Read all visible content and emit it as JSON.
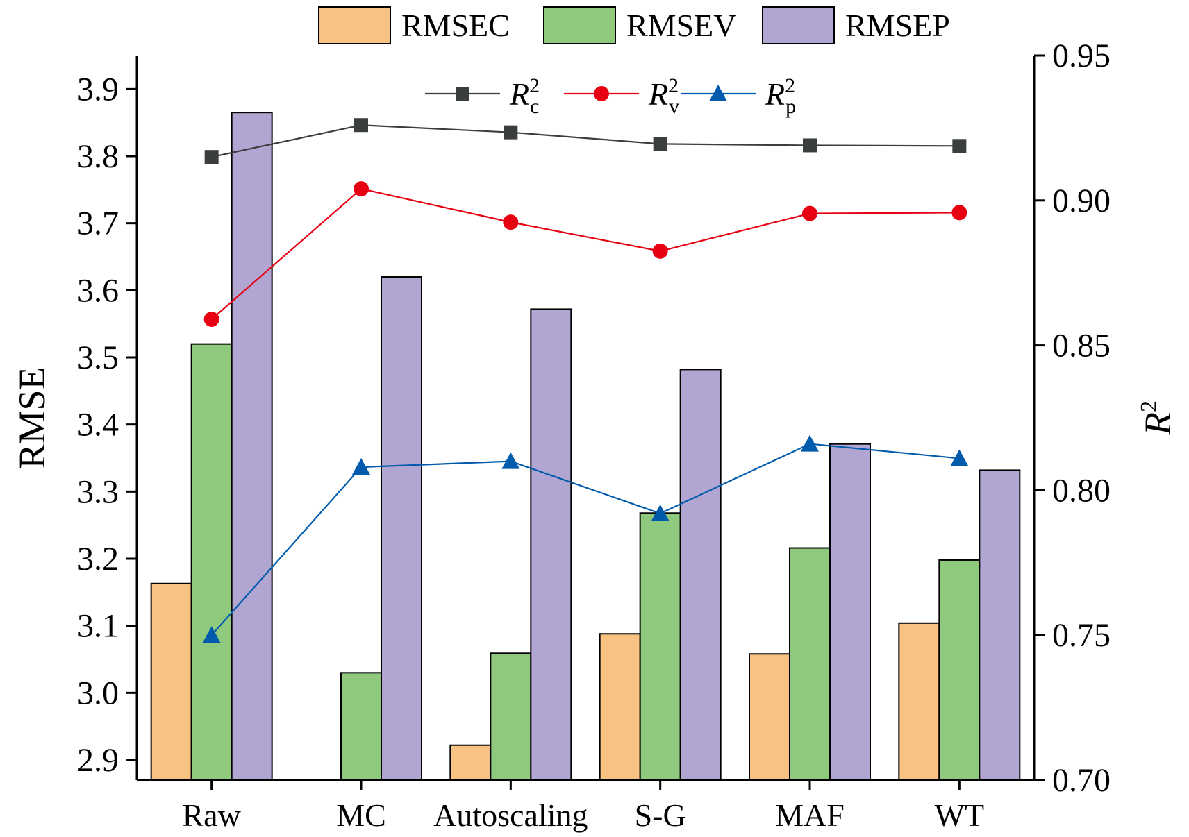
{
  "chart_data": {
    "type": "bar",
    "categories": [
      "Raw",
      "MC",
      "Autoscaling",
      "S-G",
      "MAF",
      "WT"
    ],
    "bar_series": [
      {
        "name": "RMSEC",
        "color": "#F8C283",
        "values": [
          3.163,
          2.87,
          2.922,
          3.088,
          3.058,
          3.104
        ]
      },
      {
        "name": "RMSEV",
        "color": "#8EC97E",
        "values": [
          3.52,
          3.03,
          3.059,
          3.268,
          3.216,
          3.198
        ]
      },
      {
        "name": "RMSEP",
        "color": "#B1A6D1",
        "values": [
          3.865,
          3.62,
          3.572,
          3.482,
          3.371,
          3.332
        ]
      }
    ],
    "line_series": [
      {
        "name_base": "R",
        "name_sup": "2",
        "name_sub": "c",
        "color": "#3A3F3E",
        "marker": "square",
        "values": [
          0.915,
          0.926,
          0.9235,
          0.9195,
          0.919,
          0.9188
        ]
      },
      {
        "name_base": "R",
        "name_sup": "2",
        "name_sub": "v",
        "color": "#E60012",
        "marker": "circle",
        "values": [
          0.859,
          0.904,
          0.8925,
          0.8825,
          0.8955,
          0.8958
        ]
      },
      {
        "name_base": "R",
        "name_sup": "2",
        "name_sub": "p",
        "color": "#005BAC",
        "marker": "triangle",
        "values": [
          0.75,
          0.808,
          0.81,
          0.792,
          0.816,
          0.811
        ]
      }
    ],
    "ylabel": "RMSE",
    "ylim": [
      2.87,
      3.95
    ],
    "yticks": [
      "2.9",
      "3.0",
      "3.1",
      "3.2",
      "3.3",
      "3.4",
      "3.5",
      "3.6",
      "3.7",
      "3.8",
      "3.9"
    ],
    "y2label_base": "R",
    "y2label_sup": "2",
    "y2lim": [
      0.7,
      0.95
    ],
    "y2ticks": [
      "0.70",
      "0.75",
      "0.80",
      "0.85",
      "0.90",
      "0.95"
    ],
    "grid": false
  }
}
